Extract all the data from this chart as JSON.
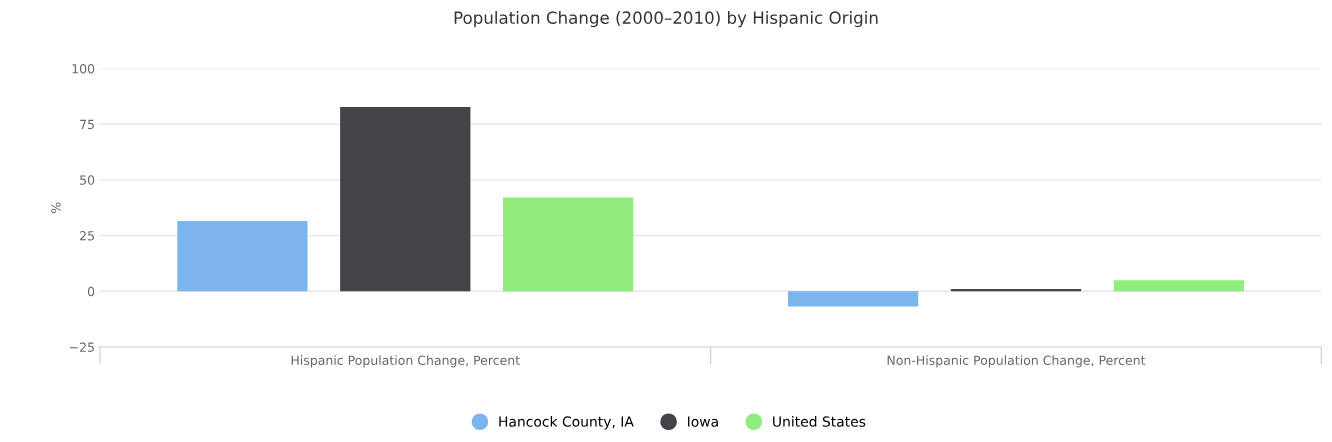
{
  "chart_data": {
    "type": "bar",
    "title": "Population Change (2000–2010) by Hispanic Origin",
    "ylabel": "%",
    "categories": [
      "Hispanic Population Change, Percent",
      "Non-Hispanic Population Change, Percent"
    ],
    "series": [
      {
        "name": "Hancock County, IA",
        "color": "#7cb5ec",
        "values": [
          31.5,
          -6.8
        ]
      },
      {
        "name": "Iowa",
        "color": "#434348",
        "values": [
          82.7,
          1.0
        ]
      },
      {
        "name": "United States",
        "color": "#90ed7d",
        "values": [
          42.1,
          4.9
        ]
      }
    ],
    "ylim": [
      -25,
      100
    ],
    "yticks": [
      -25,
      0,
      25,
      50,
      75,
      100
    ],
    "grid": "y",
    "legend": "bottom"
  }
}
